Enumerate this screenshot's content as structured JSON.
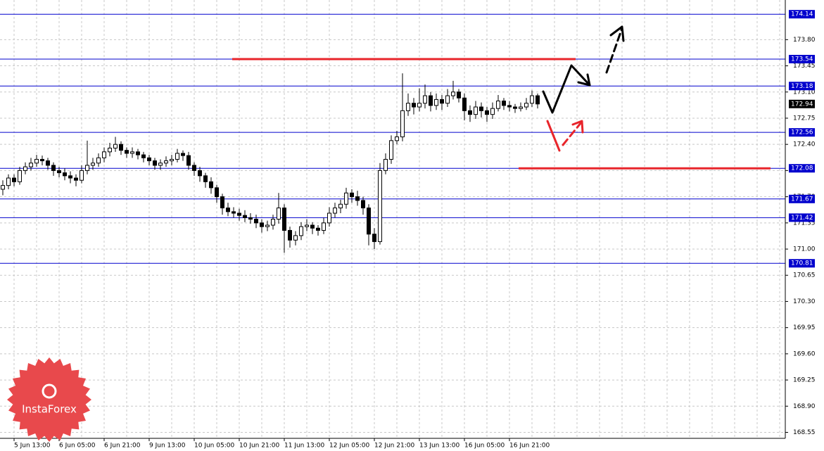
{
  "chart_data": {
    "type": "candlestick",
    "ohlc": [
      [
        171.8,
        171.92,
        171.72,
        171.85
      ],
      [
        171.85,
        172.0,
        171.8,
        171.95
      ],
      [
        171.95,
        172.0,
        171.84,
        171.9
      ],
      [
        171.9,
        172.1,
        171.86,
        172.05
      ],
      [
        172.05,
        172.16,
        172.0,
        172.1
      ],
      [
        172.1,
        172.22,
        172.05,
        172.15
      ],
      [
        172.15,
        172.26,
        172.1,
        172.2
      ],
      [
        172.2,
        172.25,
        172.12,
        172.18
      ],
      [
        172.18,
        172.22,
        172.06,
        172.12
      ],
      [
        172.12,
        172.16,
        171.98,
        172.05
      ],
      [
        172.05,
        172.1,
        171.96,
        172.02
      ],
      [
        172.02,
        172.08,
        171.92,
        171.98
      ],
      [
        171.98,
        172.04,
        171.88,
        171.95
      ],
      [
        171.95,
        172.0,
        171.84,
        171.92
      ],
      [
        171.92,
        172.12,
        171.88,
        172.05
      ],
      [
        172.05,
        172.45,
        172.0,
        172.12
      ],
      [
        172.12,
        172.22,
        172.06,
        172.15
      ],
      [
        172.15,
        172.28,
        172.1,
        172.22
      ],
      [
        172.22,
        172.36,
        172.16,
        172.3
      ],
      [
        172.3,
        172.42,
        172.24,
        172.35
      ],
      [
        172.35,
        172.5,
        172.3,
        172.4
      ],
      [
        172.4,
        172.44,
        172.26,
        172.32
      ],
      [
        172.32,
        172.36,
        172.22,
        172.28
      ],
      [
        172.28,
        172.36,
        172.22,
        172.3
      ],
      [
        172.3,
        172.34,
        172.2,
        172.26
      ],
      [
        172.26,
        172.3,
        172.16,
        172.22
      ],
      [
        172.22,
        172.26,
        172.12,
        172.18
      ],
      [
        172.18,
        172.22,
        172.06,
        172.12
      ],
      [
        172.12,
        172.2,
        172.06,
        172.15
      ],
      [
        172.15,
        172.24,
        172.1,
        172.18
      ],
      [
        172.18,
        172.26,
        172.12,
        172.2
      ],
      [
        172.2,
        172.34,
        172.16,
        172.28
      ],
      [
        172.28,
        172.32,
        172.18,
        172.25
      ],
      [
        172.25,
        172.3,
        172.06,
        172.12
      ],
      [
        172.12,
        172.16,
        171.98,
        172.05
      ],
      [
        172.05,
        172.1,
        171.9,
        171.98
      ],
      [
        171.98,
        172.02,
        171.82,
        171.9
      ],
      [
        171.9,
        171.96,
        171.74,
        171.82
      ],
      [
        171.82,
        171.86,
        171.62,
        171.7
      ],
      [
        171.7,
        171.74,
        171.46,
        171.55
      ],
      [
        171.55,
        171.62,
        171.44,
        171.5
      ],
      [
        171.5,
        171.56,
        171.42,
        171.48
      ],
      [
        171.48,
        171.54,
        171.38,
        171.45
      ],
      [
        171.45,
        171.52,
        171.36,
        171.42
      ],
      [
        171.42,
        171.48,
        171.34,
        171.4
      ],
      [
        171.4,
        171.46,
        171.28,
        171.35
      ],
      [
        171.35,
        171.4,
        171.22,
        171.3
      ],
      [
        171.3,
        171.38,
        171.24,
        171.32
      ],
      [
        171.32,
        171.46,
        171.26,
        171.4
      ],
      [
        171.4,
        171.75,
        171.34,
        171.55
      ],
      [
        171.55,
        171.6,
        170.95,
        171.25
      ],
      [
        171.25,
        171.3,
        171.02,
        171.12
      ],
      [
        171.12,
        171.24,
        171.05,
        171.18
      ],
      [
        171.18,
        171.36,
        171.12,
        171.3
      ],
      [
        171.3,
        171.4,
        171.24,
        171.32
      ],
      [
        171.32,
        171.36,
        171.2,
        171.28
      ],
      [
        171.28,
        171.32,
        171.18,
        171.25
      ],
      [
        171.25,
        171.42,
        171.2,
        171.35
      ],
      [
        171.35,
        171.56,
        171.3,
        171.48
      ],
      [
        171.48,
        171.62,
        171.42,
        171.55
      ],
      [
        171.55,
        171.66,
        171.48,
        171.6
      ],
      [
        171.6,
        171.82,
        171.54,
        171.75
      ],
      [
        171.75,
        171.8,
        171.62,
        171.7
      ],
      [
        171.7,
        171.78,
        171.58,
        171.65
      ],
      [
        171.65,
        171.7,
        171.46,
        171.55
      ],
      [
        171.55,
        171.6,
        171.05,
        171.2
      ],
      [
        171.2,
        171.28,
        171.0,
        171.1
      ],
      [
        171.1,
        172.15,
        171.06,
        172.05
      ],
      [
        172.05,
        172.28,
        172.0,
        172.2
      ],
      [
        172.2,
        172.52,
        172.14,
        172.45
      ],
      [
        172.45,
        172.58,
        172.4,
        172.5
      ],
      [
        172.5,
        173.35,
        172.44,
        172.85
      ],
      [
        172.85,
        173.08,
        172.78,
        172.95
      ],
      [
        172.95,
        173.02,
        172.8,
        172.9
      ],
      [
        172.9,
        173.15,
        172.84,
        172.95
      ],
      [
        172.95,
        173.2,
        172.88,
        173.05
      ],
      [
        173.05,
        173.1,
        172.84,
        172.92
      ],
      [
        172.92,
        173.08,
        172.86,
        173.0
      ],
      [
        173.0,
        173.06,
        172.86,
        172.95
      ],
      [
        172.95,
        173.14,
        172.9,
        173.05
      ],
      [
        173.05,
        173.25,
        173.0,
        173.1
      ],
      [
        173.1,
        173.14,
        172.96,
        173.02
      ],
      [
        173.02,
        173.08,
        172.72,
        172.85
      ],
      [
        172.85,
        172.92,
        172.7,
        172.8
      ],
      [
        172.8,
        172.98,
        172.74,
        172.9
      ],
      [
        172.9,
        172.96,
        172.76,
        172.85
      ],
      [
        172.85,
        172.9,
        172.7,
        172.8
      ],
      [
        172.8,
        172.96,
        172.74,
        172.88
      ],
      [
        172.88,
        173.06,
        172.84,
        172.98
      ],
      [
        172.98,
        173.02,
        172.86,
        172.92
      ],
      [
        172.92,
        172.98,
        172.84,
        172.9
      ],
      [
        172.9,
        172.94,
        172.82,
        172.88
      ],
      [
        172.88,
        172.96,
        172.84,
        172.9
      ],
      [
        172.9,
        173.02,
        172.86,
        172.95
      ],
      [
        172.95,
        173.12,
        172.9,
        173.05
      ],
      [
        173.05,
        173.08,
        172.88,
        172.94
      ]
    ],
    "xlim": [
      -0.5,
      139
    ],
    "xticks": [
      {
        "value": 2,
        "label": "5 Jun 13:00"
      },
      {
        "value": 10,
        "label": "6 Jun 05:00"
      },
      {
        "value": 18,
        "label": "6 Jun 21:00"
      },
      {
        "value": 26,
        "label": "9 Jun 13:00"
      },
      {
        "value": 34,
        "label": "10 Jun 05:00"
      },
      {
        "value": 42,
        "label": "10 Jun 21:00"
      },
      {
        "value": 50,
        "label": "11 Jun 13:00"
      },
      {
        "value": 58,
        "label": "12 Jun 05:00"
      },
      {
        "value": 66,
        "label": "12 Jun 21:00"
      },
      {
        "value": 74,
        "label": "13 Jun 13:00"
      },
      {
        "value": 82,
        "label": "16 Jun 05:00"
      },
      {
        "value": 90,
        "label": "16 Jun 21:00"
      }
    ],
    "ylim": [
      168.47,
      174.33
    ],
    "yticks": [
      {
        "value": 173.8,
        "label": "173.80"
      },
      173.45,
      {
        "value": 173.1,
        "label": "173.10"
      },
      172.75,
      {
        "value": 172.4,
        "label": "172.40"
      },
      172.05,
      {
        "value": 171.7,
        "label": "171.70"
      },
      171.35,
      {
        "value": 171,
        "label": "171.00"
      },
      170.65,
      {
        "value": 170.3,
        "label": "170.30"
      },
      169.95,
      {
        "value": 169.6,
        "label": "169.60"
      },
      169.25,
      {
        "value": 168.9,
        "label": "168.90"
      },
      168.55
    ],
    "levels": [
      174.14,
      173.54,
      173.18,
      172.56,
      172.08,
      171.67,
      171.42,
      170.81
    ],
    "level_color": "#0000cd",
    "highlight_levels": [
      1,
      4
    ],
    "highlight_color": "#e8252b",
    "grid": true,
    "watermark": "InstaForex"
  }
}
